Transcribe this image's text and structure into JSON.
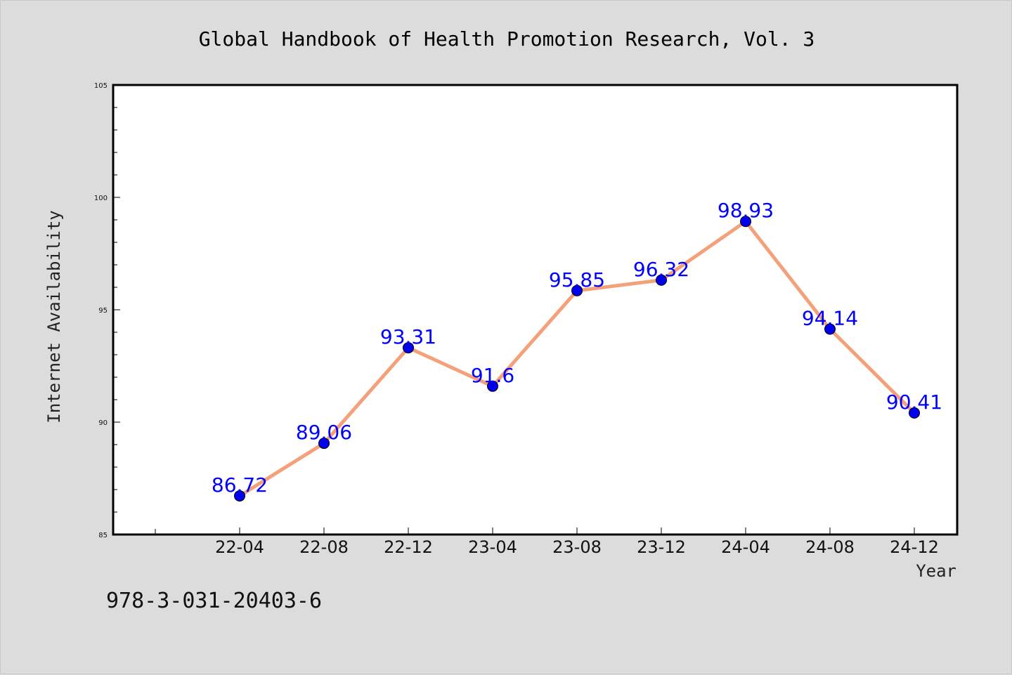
{
  "chart_data": {
    "type": "line",
    "title": "Global Handbook of Health Promotion Research, Vol. 3",
    "xlabel": "Year",
    "ylabel": "Internet Availability",
    "categories": [
      "22-04",
      "22-08",
      "22-12",
      "23-04",
      "23-08",
      "23-12",
      "24-04",
      "24-08",
      "24-12"
    ],
    "series": [
      {
        "values": [
          86.72,
          89.06,
          93.31,
          91.6,
          95.85,
          96.32,
          98.93,
          94.14,
          90.41
        ]
      }
    ],
    "data_labels": [
      "86.72",
      "89.06",
      "93.31",
      "91.6",
      "95.85",
      "96.32",
      "98.93",
      "94.14",
      "90.41"
    ],
    "yticks": [
      85,
      90,
      95,
      100,
      105
    ],
    "ylim": [
      85,
      105
    ],
    "grid": false,
    "legend": "none",
    "colors": {
      "line": "#f4a07a",
      "marker": "#0000ee",
      "label": "#0000ff",
      "background": "#dcdcdc",
      "plot_background": "#ffffff"
    }
  },
  "footer": {
    "isbn": "978-3-031-20403-6"
  }
}
